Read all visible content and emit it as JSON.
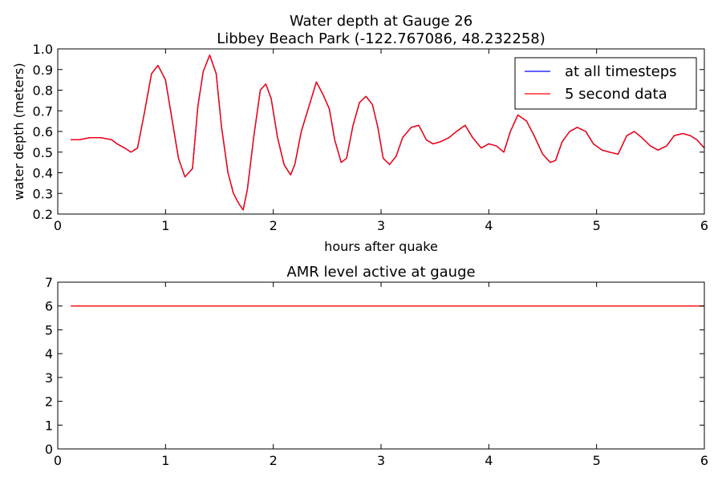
{
  "chart_data": [
    {
      "type": "line",
      "title": "Water depth at Gauge 26",
      "subtitle": "Libbey Beach Park  (-122.767086, 48.232258)",
      "xlabel": "hours after quake",
      "ylabel": "water depth (meters)",
      "xlim": [
        0,
        6
      ],
      "ylim": [
        0.2,
        1.0
      ],
      "xticks": [
        "0",
        "1",
        "2",
        "3",
        "4",
        "5",
        "6"
      ],
      "yticks": [
        "0.2",
        "0.3",
        "0.4",
        "0.5",
        "0.6",
        "0.7",
        "0.8",
        "0.9",
        "1.0"
      ],
      "legend": {
        "placement": "top-right",
        "entries": [
          "at all timesteps",
          "5 second data"
        ]
      },
      "grid": false,
      "series": [
        {
          "name": "at all timesteps",
          "color": "#0000ff",
          "x": [
            0.12,
            0.2,
            0.3,
            0.4,
            0.5,
            0.55,
            0.62,
            0.68,
            0.74,
            0.8,
            0.87,
            0.93,
            1.0,
            1.05,
            1.12,
            1.18,
            1.25,
            1.3,
            1.35,
            1.41,
            1.47,
            1.52,
            1.58,
            1.63,
            1.68,
            1.72,
            1.76,
            1.82,
            1.88,
            1.93,
            1.98,
            2.04,
            2.1,
            2.16,
            2.2,
            2.26,
            2.33,
            2.4,
            2.46,
            2.52,
            2.57,
            2.63,
            2.68,
            2.74,
            2.8,
            2.86,
            2.92,
            2.97,
            3.02,
            3.08,
            3.14,
            3.2,
            3.28,
            3.35,
            3.42,
            3.48,
            3.55,
            3.63,
            3.7,
            3.78,
            3.85,
            3.93,
            4.0,
            4.07,
            4.14,
            4.2,
            4.27,
            4.35,
            4.42,
            4.5,
            4.57,
            4.62,
            4.68,
            4.75,
            4.82,
            4.9,
            4.97,
            5.05,
            5.12,
            5.2,
            5.28,
            5.35,
            5.42,
            5.5,
            5.57,
            5.65,
            5.72,
            5.8,
            5.87,
            5.93,
            6.0
          ],
          "y": [
            0.56,
            0.56,
            0.57,
            0.57,
            0.56,
            0.54,
            0.52,
            0.5,
            0.52,
            0.68,
            0.88,
            0.92,
            0.85,
            0.69,
            0.47,
            0.38,
            0.42,
            0.72,
            0.89,
            0.97,
            0.88,
            0.62,
            0.4,
            0.3,
            0.25,
            0.22,
            0.32,
            0.58,
            0.8,
            0.83,
            0.76,
            0.57,
            0.44,
            0.39,
            0.44,
            0.6,
            0.72,
            0.84,
            0.78,
            0.71,
            0.56,
            0.45,
            0.47,
            0.63,
            0.74,
            0.77,
            0.73,
            0.62,
            0.47,
            0.44,
            0.48,
            0.57,
            0.62,
            0.63,
            0.56,
            0.54,
            0.55,
            0.57,
            0.6,
            0.63,
            0.57,
            0.52,
            0.54,
            0.53,
            0.5,
            0.6,
            0.68,
            0.65,
            0.58,
            0.49,
            0.45,
            0.46,
            0.55,
            0.6,
            0.62,
            0.6,
            0.54,
            0.51,
            0.5,
            0.49,
            0.58,
            0.6,
            0.57,
            0.53,
            0.51,
            0.53,
            0.58,
            0.59,
            0.58,
            0.56,
            0.52
          ]
        },
        {
          "name": "5 second data",
          "color": "#ff0000",
          "x": [
            0.12,
            0.2,
            0.3,
            0.4,
            0.5,
            0.55,
            0.62,
            0.68,
            0.74,
            0.8,
            0.87,
            0.93,
            1.0,
            1.05,
            1.12,
            1.18,
            1.25,
            1.3,
            1.35,
            1.41,
            1.47,
            1.52,
            1.58,
            1.63,
            1.68,
            1.72,
            1.76,
            1.82,
            1.88,
            1.93,
            1.98,
            2.04,
            2.1,
            2.16,
            2.2,
            2.26,
            2.33,
            2.4,
            2.46,
            2.52,
            2.57,
            2.63,
            2.68,
            2.74,
            2.8,
            2.86,
            2.92,
            2.97,
            3.02,
            3.08,
            3.14,
            3.2,
            3.28,
            3.35,
            3.42,
            3.48,
            3.55,
            3.63,
            3.7,
            3.78,
            3.85,
            3.93,
            4.0,
            4.07,
            4.14,
            4.2,
            4.27,
            4.35,
            4.42,
            4.5,
            4.57,
            4.62,
            4.68,
            4.75,
            4.82,
            4.9,
            4.97,
            5.05,
            5.12,
            5.2,
            5.28,
            5.35,
            5.42,
            5.5,
            5.57,
            5.65,
            5.72,
            5.8,
            5.87,
            5.93,
            6.0
          ],
          "y": [
            0.56,
            0.56,
            0.57,
            0.57,
            0.56,
            0.54,
            0.52,
            0.5,
            0.52,
            0.68,
            0.88,
            0.92,
            0.85,
            0.69,
            0.47,
            0.38,
            0.42,
            0.72,
            0.89,
            0.97,
            0.88,
            0.62,
            0.4,
            0.3,
            0.25,
            0.22,
            0.32,
            0.58,
            0.8,
            0.83,
            0.76,
            0.57,
            0.44,
            0.39,
            0.44,
            0.6,
            0.72,
            0.84,
            0.78,
            0.71,
            0.56,
            0.45,
            0.47,
            0.63,
            0.74,
            0.77,
            0.73,
            0.62,
            0.47,
            0.44,
            0.48,
            0.57,
            0.62,
            0.63,
            0.56,
            0.54,
            0.55,
            0.57,
            0.6,
            0.63,
            0.57,
            0.52,
            0.54,
            0.53,
            0.5,
            0.6,
            0.68,
            0.65,
            0.58,
            0.49,
            0.45,
            0.46,
            0.55,
            0.6,
            0.62,
            0.6,
            0.54,
            0.51,
            0.5,
            0.49,
            0.58,
            0.6,
            0.57,
            0.53,
            0.51,
            0.53,
            0.58,
            0.59,
            0.58,
            0.56,
            0.52
          ]
        }
      ]
    },
    {
      "type": "line",
      "title": "AMR level active at gauge",
      "xlim": [
        0,
        6
      ],
      "ylim": [
        0,
        7
      ],
      "xticks": [
        "0",
        "1",
        "2",
        "3",
        "4",
        "5",
        "6"
      ],
      "yticks": [
        "0",
        "1",
        "2",
        "3",
        "4",
        "5",
        "6",
        "7"
      ],
      "grid": false,
      "series": [
        {
          "color": "#ff0000",
          "x": [
            0.12,
            6.0
          ],
          "y": [
            6,
            6
          ]
        }
      ]
    }
  ]
}
